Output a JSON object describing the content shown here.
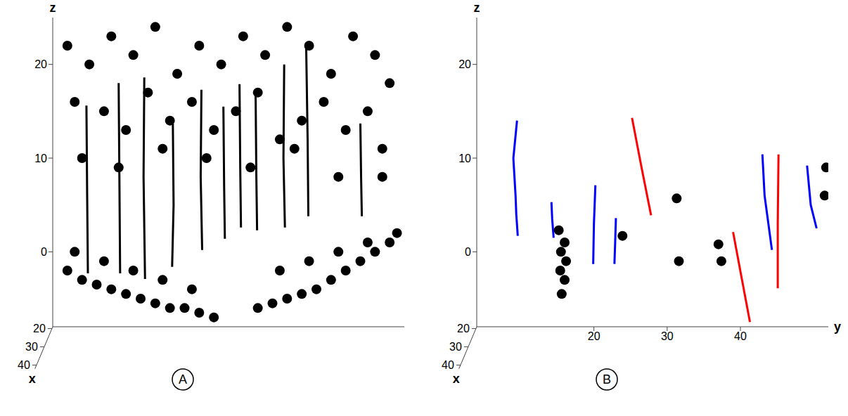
{
  "chart_data": [
    {
      "panel": "A",
      "type": "scatter",
      "z_label": "z",
      "x_label": "x",
      "xlim": [
        19,
        42
      ],
      "xticks": [
        20,
        30,
        40
      ],
      "ylim": [
        4,
        52
      ],
      "zlim": [
        -8,
        25
      ],
      "zticks": [
        0,
        10,
        20
      ],
      "series": [
        {
          "color": "#000000",
          "marker": "none",
          "line_style": "solid",
          "y": [
            8.6,
            8.7,
            8.8
          ],
          "z": [
            15.6,
            6,
            -2.3
          ]
        },
        {
          "color": "#000000",
          "marker": "none",
          "line_style": "solid",
          "y": [
            13.0,
            13.1,
            13.2
          ],
          "z": [
            18.0,
            8,
            -2.3
          ]
        },
        {
          "color": "#000000",
          "marker": "none",
          "line_style": "solid",
          "y": [
            16.5,
            16.4,
            16.6
          ],
          "z": [
            18.6,
            8,
            -2.9
          ]
        },
        {
          "color": "#000000",
          "marker": "none",
          "line_style": "solid",
          "y": [
            20.4,
            20.5,
            20.3
          ],
          "z": [
            13.7,
            5,
            -1.6
          ]
        },
        {
          "color": "#000000",
          "marker": "none",
          "line_style": "solid",
          "y": [
            24.3,
            24.2,
            24.4
          ],
          "z": [
            17.3,
            8,
            0.2
          ]
        },
        {
          "color": "#000000",
          "marker": "none",
          "line_style": "solid",
          "y": [
            27.3,
            27.4,
            27.5
          ],
          "z": [
            15.5,
            7,
            1.4
          ]
        },
        {
          "color": "#000000",
          "marker": "none",
          "line_style": "solid",
          "y": [
            29.5,
            29.6,
            29.7
          ],
          "z": [
            17.9,
            9,
            2.6
          ]
        },
        {
          "color": "#000000",
          "marker": "none",
          "line_style": "solid",
          "y": [
            31.7,
            31.8,
            31.9
          ],
          "z": [
            16.7,
            8,
            2.3
          ]
        },
        {
          "color": "#000000",
          "marker": "none",
          "line_style": "solid",
          "y": [
            35.6,
            35.5,
            35.7
          ],
          "z": [
            20.0,
            10,
            2.6
          ]
        },
        {
          "color": "#000000",
          "marker": "none",
          "line_style": "solid",
          "y": [
            38.6,
            38.8,
            38.9
          ],
          "z": [
            22.0,
            12,
            3.8
          ]
        },
        {
          "color": "#000000",
          "marker": "none",
          "line_style": "solid",
          "y": [
            46.0,
            46.1,
            46.2
          ],
          "z": [
            13.7,
            8,
            3.8
          ]
        },
        {
          "color": "#000000",
          "marker": "circle",
          "line_style": "none",
          "y": [
            6,
            9,
            12,
            15,
            18,
            21,
            24,
            27,
            30,
            33,
            36,
            39,
            42,
            45,
            48,
            50,
            7,
            11,
            14,
            17,
            20,
            23,
            26,
            29,
            32,
            35,
            38,
            41,
            44,
            47,
            49,
            8,
            13,
            19,
            25,
            31,
            37,
            43,
            49
          ],
          "z": [
            22,
            20,
            23,
            21,
            24,
            19,
            22,
            20,
            23,
            21,
            24,
            22,
            19,
            23,
            21,
            18,
            16,
            15,
            13,
            17,
            14,
            16,
            13,
            15,
            17,
            12,
            14,
            16,
            13,
            15,
            11,
            10,
            9,
            11,
            10,
            9,
            11,
            8,
            8
          ]
        },
        {
          "color": "#000000",
          "marker": "circle",
          "line_style": "none",
          "y": [
            6,
            8,
            10,
            12,
            14,
            16,
            18,
            20,
            22,
            24,
            26,
            32,
            34,
            36,
            38,
            40,
            42,
            44,
            46,
            48,
            50,
            7,
            11,
            15,
            19,
            23,
            35,
            39,
            43,
            47,
            51
          ],
          "z": [
            -2,
            -3,
            -3.5,
            -4,
            -4.5,
            -5,
            -5.5,
            -6,
            -6,
            -6.5,
            -7,
            -6,
            -5.5,
            -5,
            -4.5,
            -4,
            -3,
            -2,
            -1,
            0,
            1,
            0,
            -1,
            -2,
            -3,
            -4,
            -2,
            -1,
            0,
            1,
            2
          ]
        }
      ]
    },
    {
      "panel": "B",
      "type": "scatter",
      "z_label": "z",
      "x_label": "x",
      "y_label": "y",
      "xlim": [
        19,
        42
      ],
      "xticks": [
        20,
        30,
        40
      ],
      "ylim": [
        4,
        52
      ],
      "yticks": [
        20,
        30,
        40
      ],
      "zlim": [
        -8,
        25
      ],
      "zticks": [
        0,
        10,
        20
      ],
      "series": [
        {
          "color": "#0000ff",
          "marker": "none",
          "line_style": "solid",
          "y": [
            9.5,
            9.0,
            9.3,
            9.4,
            9.6
          ],
          "z": [
            14,
            10,
            6,
            4,
            1.7
          ]
        },
        {
          "color": "#0000ff",
          "marker": "none",
          "line_style": "solid",
          "y": [
            14.2,
            14.3,
            14.5
          ],
          "z": [
            5.3,
            3.5,
            1.5
          ]
        },
        {
          "color": "#0000ff",
          "marker": "none",
          "line_style": "solid",
          "y": [
            20.2,
            20.0,
            19.9
          ],
          "z": [
            7.1,
            3,
            -1.3
          ]
        },
        {
          "color": "#0000ff",
          "marker": "none",
          "line_style": "solid",
          "y": [
            23.0,
            22.9,
            22.8
          ],
          "z": [
            3.6,
            1,
            -1.3
          ]
        },
        {
          "color": "#0000ff",
          "marker": "none",
          "line_style": "solid",
          "y": [
            43.0,
            43.3,
            44.3
          ],
          "z": [
            10.4,
            6,
            0.2
          ]
        },
        {
          "color": "#0000ff",
          "marker": "none",
          "line_style": "solid",
          "y": [
            49.1,
            49.6,
            50.4
          ],
          "z": [
            9.2,
            5,
            2.5
          ]
        },
        {
          "color": "#ff0000",
          "marker": "none",
          "line_style": "solid",
          "y": [
            25.2,
            26.5,
            27.8
          ],
          "z": [
            14.3,
            9,
            3.9
          ]
        },
        {
          "color": "#ff0000",
          "marker": "none",
          "line_style": "solid",
          "y": [
            45.2,
            45.1,
            45.1
          ],
          "z": [
            10.4,
            3,
            -3.9
          ]
        },
        {
          "color": "#ff0000",
          "marker": "none",
          "line_style": "solid",
          "y": [
            39.0,
            40.1,
            41.3
          ],
          "z": [
            2.1,
            -2.5,
            -7.5
          ]
        },
        {
          "color": "#000000",
          "marker": "circle",
          "line_style": "none",
          "y": [
            15.2,
            16.0,
            15.5,
            16.2,
            15.4,
            16.0,
            15.6,
            23.9,
            31.3,
            31.6,
            37.0,
            37.4,
            51.7,
            51.5
          ],
          "z": [
            2.3,
            1.0,
            0.0,
            -1.0,
            -2.0,
            -3.0,
            -4.5,
            1.7,
            5.7,
            -1.0,
            0.8,
            -1.0,
            9.0,
            6.0
          ]
        }
      ]
    }
  ]
}
